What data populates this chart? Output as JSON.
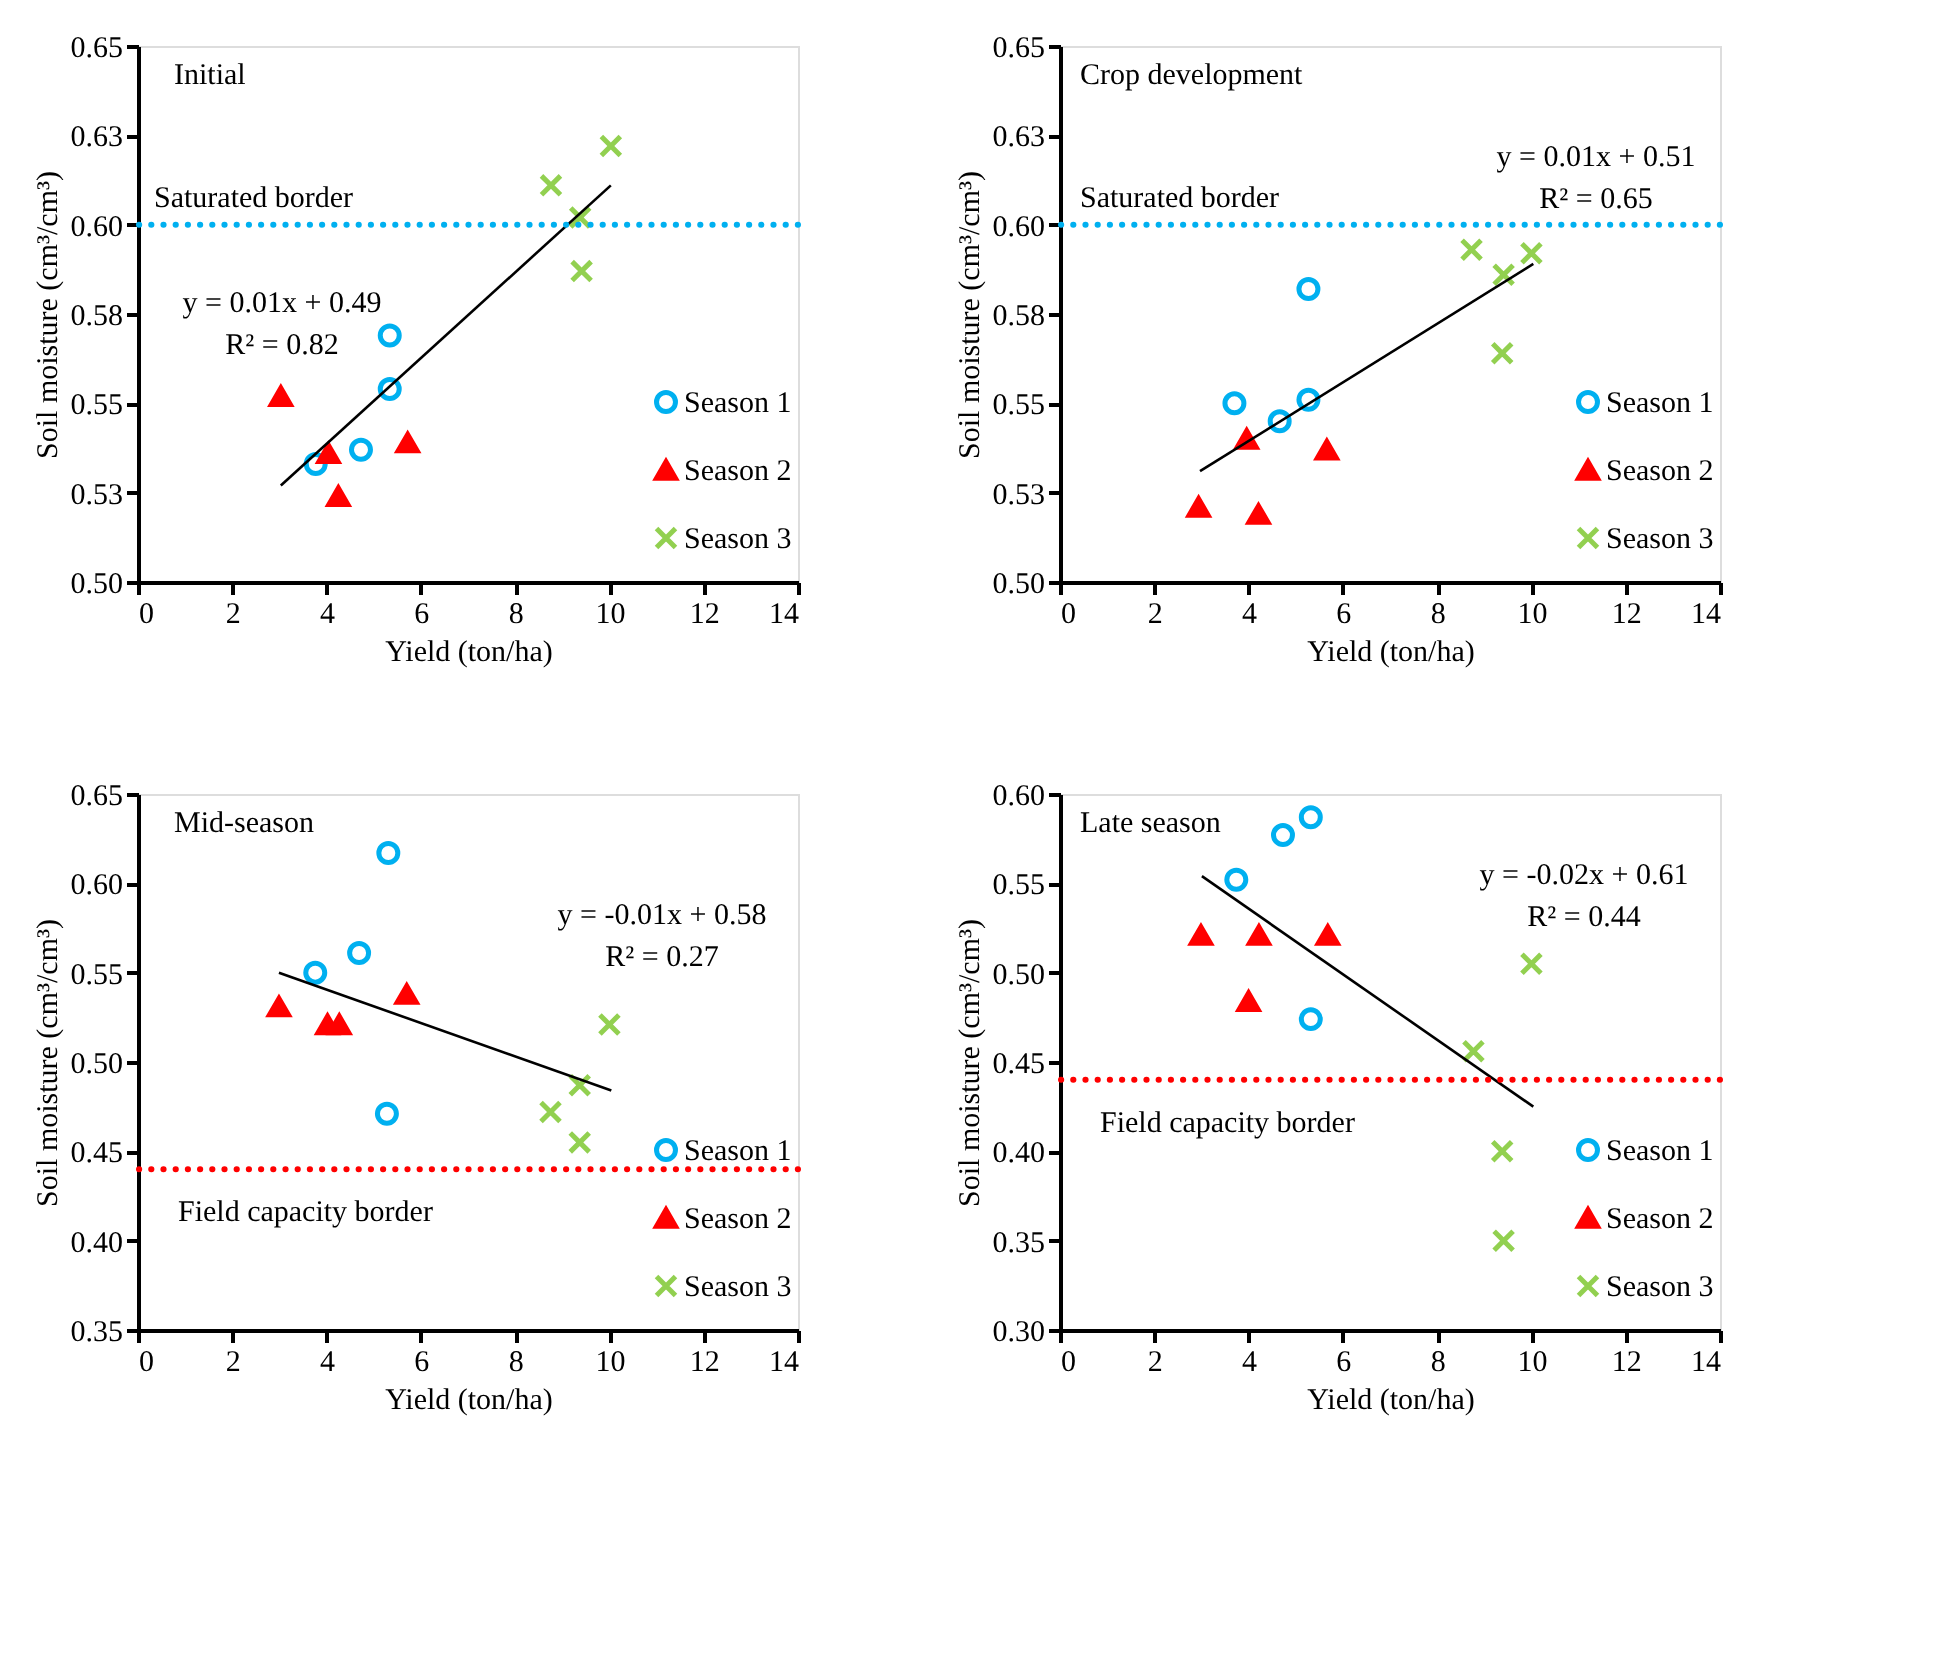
{
  "chart_data": [
    {
      "type": "scatter",
      "xlabel": "Yield (ton/ha)",
      "ylabel": "Soil moisture (cm³/cm³)",
      "annotations": [
        "Initial",
        "y = 0.01x + 0.49",
        "R² = 0.82"
      ],
      "xlim": [
        0,
        14
      ],
      "xticks": [
        0,
        2,
        4,
        6,
        8,
        10,
        12,
        14
      ],
      "ylim": [
        0.5,
        0.65
      ],
      "yticks": [
        {
          "value": 0.5,
          "label": "0.50"
        },
        {
          "value": 0.525,
          "label": "0.53"
        },
        {
          "value": 0.55,
          "label": "0.55"
        },
        {
          "value": 0.575,
          "label": "0.58"
        },
        {
          "value": 0.6,
          "label": "0.60"
        },
        {
          "value": 0.625,
          "label": "0.63"
        },
        {
          "value": 0.65,
          "label": "0.65"
        }
      ],
      "legend": "bottom right",
      "ref_lines": [
        {
          "axis": "y",
          "value": 0.6,
          "label": "Saturated border",
          "color": "#00b0f0",
          "line_style": "dotted"
        }
      ],
      "series": [
        {
          "name": "Season 1",
          "color": "#00b0f0",
          "marker": "circle",
          "x": [
            3.77,
            4.73,
            5.34,
            5.34
          ],
          "values": [
            0.533,
            0.537,
            0.554,
            0.569
          ]
        },
        {
          "name": "Season 2",
          "color": "#ff0000",
          "marker": "triangle",
          "x": [
            3.03,
            4.04,
            4.25,
            5.72
          ],
          "values": [
            0.552,
            0.536,
            0.524,
            0.539
          ]
        },
        {
          "name": "Season 3",
          "color": "#92d050",
          "marker": "cross",
          "x": [
            8.76,
            9.38,
            9.41,
            10.03
          ],
          "values": [
            0.611,
            0.602,
            0.587,
            0.622
          ]
        },
        {
          "type": "line",
          "color": "#000000",
          "x": [
            3.03,
            10.03
          ],
          "values": [
            0.527,
            0.611
          ]
        }
      ]
    },
    {
      "type": "scatter",
      "xlabel": "Yield (ton/ha)",
      "ylabel": "Soil moisture (cm³/cm³)",
      "annotations": [
        "Crop development",
        "y = 0.01x + 0.51",
        "R² = 0.65"
      ],
      "xlim": [
        0,
        14
      ],
      "xticks": [
        0,
        2,
        4,
        6,
        8,
        10,
        12,
        14
      ],
      "ylim": [
        0.5,
        0.65
      ],
      "yticks": [
        {
          "value": 0.5,
          "label": "0.50"
        },
        {
          "value": 0.525,
          "label": "0.53"
        },
        {
          "value": 0.55,
          "label": "0.55"
        },
        {
          "value": 0.575,
          "label": "0.58"
        },
        {
          "value": 0.6,
          "label": "0.60"
        },
        {
          "value": 0.625,
          "label": "0.63"
        },
        {
          "value": 0.65,
          "label": "0.65"
        }
      ],
      "legend": "bottom right",
      "ref_lines": [
        {
          "axis": "y",
          "value": 0.6,
          "label": "Saturated border",
          "color": "#00b0f0",
          "line_style": "dotted"
        }
      ],
      "series": [
        {
          "name": "Season 1",
          "color": "#00b0f0",
          "marker": "circle",
          "x": [
            3.7,
            4.66,
            5.27,
            5.27
          ],
          "values": [
            0.55,
            0.545,
            0.551,
            0.582
          ]
        },
        {
          "name": "Season 2",
          "color": "#ff0000",
          "marker": "triangle",
          "x": [
            2.94,
            3.96,
            4.21,
            5.66
          ],
          "values": [
            0.521,
            0.54,
            0.519,
            0.537
          ]
        },
        {
          "name": "Season 3",
          "color": "#92d050",
          "marker": "cross",
          "x": [
            8.73,
            9.41,
            10.0,
            9.38
          ],
          "values": [
            0.593,
            0.586,
            0.592,
            0.564
          ]
        },
        {
          "type": "line",
          "color": "#000000",
          "x": [
            2.97,
            10.04
          ],
          "values": [
            0.531,
            0.589
          ]
        }
      ]
    },
    {
      "type": "scatter",
      "xlabel": "Yield (ton/ha)",
      "ylabel": "Soil moisture (cm³/cm³)",
      "annotations": [
        "Mid-season",
        "y = -0.01x + 0.58",
        "R² = 0.27"
      ],
      "xlim": [
        0,
        14
      ],
      "xticks": [
        0,
        2,
        4,
        6,
        8,
        10,
        12,
        14
      ],
      "ylim": [
        0.35,
        0.65
      ],
      "yticks": [
        {
          "value": 0.35,
          "label": "0.35"
        },
        {
          "value": 0.4,
          "label": "0.40"
        },
        {
          "value": 0.45,
          "label": "0.45"
        },
        {
          "value": 0.5,
          "label": "0.50"
        },
        {
          "value": 0.55,
          "label": "0.55"
        },
        {
          "value": 0.6,
          "label": "0.60"
        },
        {
          "value": 0.65,
          "label": "0.65"
        }
      ],
      "legend": "bottom right",
      "ref_lines": [
        {
          "axis": "y",
          "value": 0.44,
          "label": "Field capacity border",
          "color": "#ff0000",
          "line_style": "dotted"
        }
      ],
      "series": [
        {
          "name": "Season 1",
          "color": "#00b0f0",
          "marker": "circle",
          "x": [
            5.31,
            4.69,
            3.76,
            5.28
          ],
          "values": [
            0.617,
            0.561,
            0.55,
            0.471
          ]
        },
        {
          "name": "Season 2",
          "color": "#ff0000",
          "marker": "triangle",
          "x": [
            2.99,
            4.02,
            4.27,
            5.7
          ],
          "values": [
            0.531,
            0.521,
            0.521,
            0.538
          ]
        },
        {
          "name": "Season 3",
          "color": "#92d050",
          "marker": "cross",
          "x": [
            10.0,
            9.37,
            8.75,
            9.37
          ],
          "values": [
            0.521,
            0.487,
            0.472,
            0.455
          ]
        },
        {
          "type": "line",
          "color": "#000000",
          "x": [
            2.99,
            10.04
          ],
          "values": [
            0.55,
            0.484
          ]
        }
      ]
    },
    {
      "type": "scatter",
      "xlabel": "Yield (ton/ha)",
      "ylabel": "Soil moisture (cm³/cm³)",
      "annotations": [
        "Late season",
        "y = -0.02x + 0.61",
        "R² = 0.44"
      ],
      "xlim": [
        0,
        14
      ],
      "xticks": [
        0,
        2,
        4,
        6,
        8,
        10,
        12,
        14
      ],
      "ylim": [
        0.3,
        0.6
      ],
      "yticks": [
        {
          "value": 0.3,
          "label": "0.30"
        },
        {
          "value": 0.35,
          "label": "0.35"
        },
        {
          "value": 0.4,
          "label": "0.40"
        },
        {
          "value": 0.45,
          "label": "0.45"
        },
        {
          "value": 0.5,
          "label": "0.50"
        },
        {
          "value": 0.55,
          "label": "0.55"
        },
        {
          "value": 0.6,
          "label": "0.60"
        }
      ],
      "legend": "bottom right",
      "ref_lines": [
        {
          "axis": "y",
          "value": 0.44,
          "label": "Field capacity border",
          "color": "#ff0000",
          "line_style": "dotted"
        }
      ],
      "series": [
        {
          "name": "Season 1",
          "color": "#00b0f0",
          "marker": "circle",
          "x": [
            3.74,
            4.73,
            5.32,
            5.32
          ],
          "values": [
            0.552,
            0.577,
            0.587,
            0.474
          ]
        },
        {
          "name": "Season 2",
          "color": "#ff0000",
          "marker": "triangle",
          "x": [
            2.99,
            4.22,
            5.68,
            4.0
          ],
          "values": [
            0.521,
            0.521,
            0.521,
            0.484
          ]
        },
        {
          "name": "Season 3",
          "color": "#92d050",
          "marker": "cross",
          "x": [
            10.0,
            8.77,
            9.38,
            9.41
          ],
          "values": [
            0.505,
            0.456,
            0.4,
            0.35
          ]
        },
        {
          "type": "line",
          "color": "#000000",
          "x": [
            3.01,
            10.04
          ],
          "values": [
            0.554,
            0.425
          ]
        }
      ]
    }
  ]
}
